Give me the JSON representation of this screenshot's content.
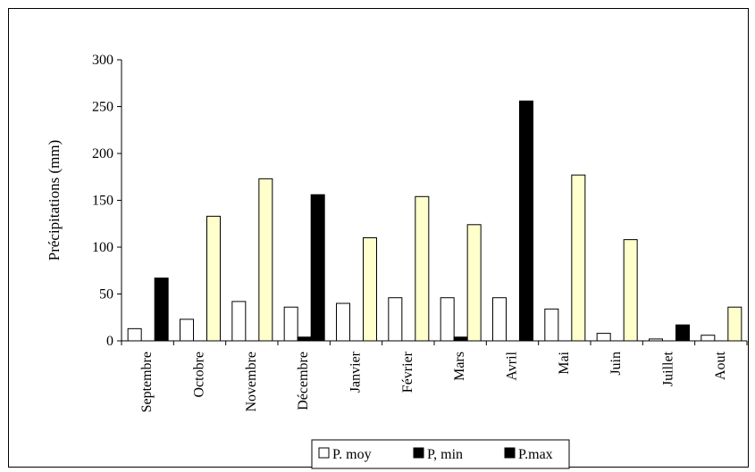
{
  "chart_data": {
    "type": "bar",
    "title": "",
    "xlabel": "",
    "ylabel": "Précipitations (mm)",
    "ylim": [
      0,
      300
    ],
    "yticks": [
      0,
      50,
      100,
      150,
      200,
      250,
      300
    ],
    "grid": false,
    "legend_position": "bottom",
    "categories": [
      "Septembre",
      "Octobre",
      "Novembre",
      "Décembre",
      "Janvier",
      "Février",
      "Mars",
      "Avril",
      "Mai",
      "Juin",
      "Juillet",
      "Aout"
    ],
    "series": [
      {
        "name": "P. moy",
        "color": "#ffffff",
        "values": [
          13,
          23,
          42,
          36,
          40,
          46,
          46,
          46,
          34,
          8,
          2,
          6
        ]
      },
      {
        "name": "P, min",
        "color": "#000000",
        "values": [
          0,
          0,
          0,
          4,
          0,
          0,
          4,
          0,
          0,
          0,
          0,
          0
        ]
      },
      {
        "name": "P.max",
        "color_by_category": [
          "#000000",
          "#ffffcc",
          "#ffffcc",
          "#000000",
          "#ffffcc",
          "#ffffcc",
          "#ffffcc",
          "#000000",
          "#ffffcc",
          "#ffffcc",
          "#000000",
          "#ffffcc"
        ],
        "legend_color": "#000000",
        "values": [
          67,
          133,
          173,
          156,
          110,
          154,
          124,
          256,
          177,
          108,
          17,
          36
        ]
      }
    ]
  }
}
